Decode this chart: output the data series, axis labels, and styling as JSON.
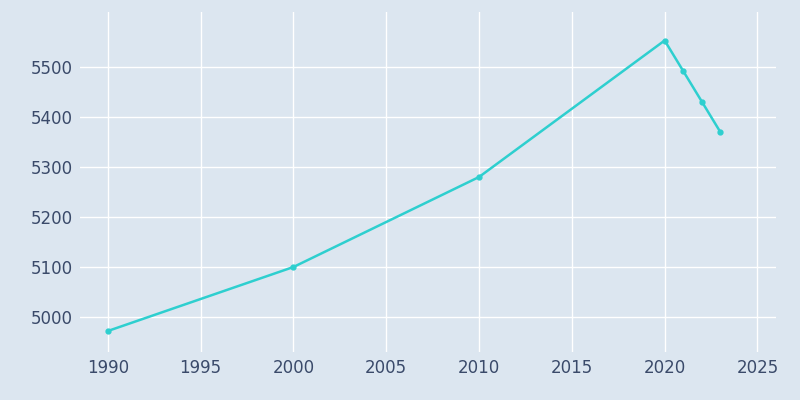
{
  "years": [
    1990,
    2000,
    2010,
    2020,
    2021,
    2022,
    2023
  ],
  "population": [
    4972,
    5100,
    5280,
    5553,
    5492,
    5431,
    5370
  ],
  "line_color": "#2ecfcf",
  "marker": "o",
  "marker_size": 3.5,
  "line_width": 1.8,
  "bg_color": "#dce6f0",
  "fig_bg_color": "#dce6f0",
  "xlim": [
    1988.5,
    2026
  ],
  "ylim": [
    4930,
    5610
  ],
  "yticks": [
    5000,
    5100,
    5200,
    5300,
    5400,
    5500
  ],
  "xticks": [
    1990,
    1995,
    2000,
    2005,
    2010,
    2015,
    2020,
    2025
  ],
  "grid_color": "#ffffff",
  "grid_linewidth": 1.0,
  "tick_color": "#3a4a6a",
  "tick_fontsize": 12,
  "spine_visible": false
}
